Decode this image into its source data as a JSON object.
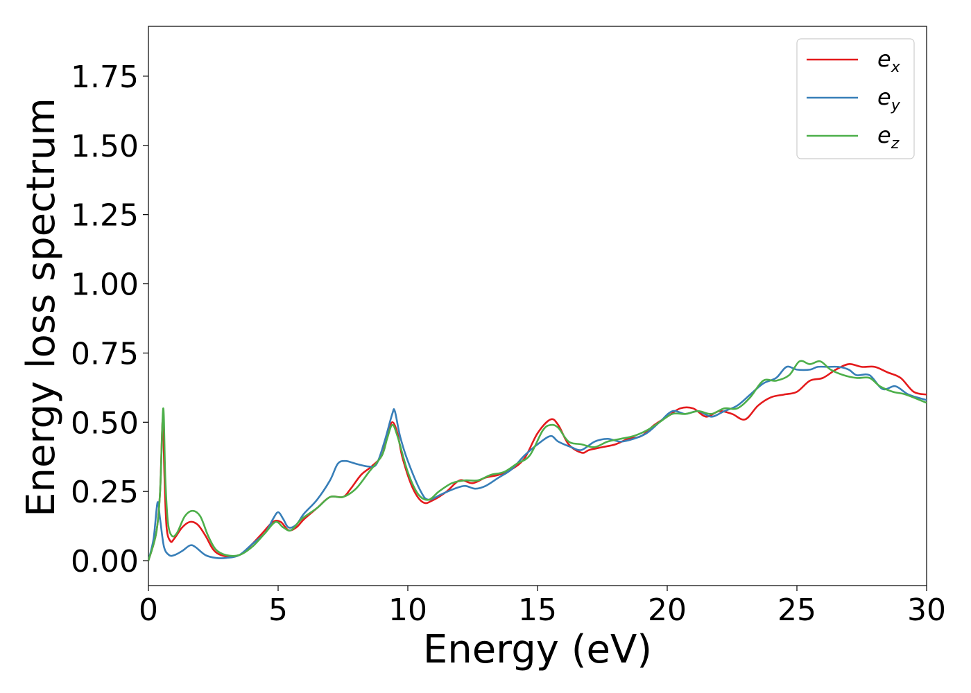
{
  "chart_data": {
    "type": "line",
    "xlabel": "Energy (eV)",
    "ylabel": "Energy loss spectrum",
    "xlim": [
      0,
      30
    ],
    "ylim": [
      -0.09,
      1.93
    ],
    "x_ticks": [
      0,
      5,
      10,
      15,
      20,
      25,
      30
    ],
    "y_ticks": [
      0.0,
      0.25,
      0.5,
      0.75,
      1.0,
      1.25,
      1.5,
      1.75
    ],
    "x_tick_labels": [
      "0",
      "5",
      "10",
      "15",
      "20",
      "25",
      "30"
    ],
    "y_tick_labels": [
      "0.00",
      "0.25",
      "0.50",
      "0.75",
      "1.00",
      "1.25",
      "1.50",
      "1.75"
    ],
    "grid": false,
    "legend_position": "top-right",
    "series": [
      {
        "name": "e",
        "subscript": "x",
        "color": "#e41a1c",
        "points": [
          [
            0,
            0.0
          ],
          [
            0.3,
            0.1
          ],
          [
            0.45,
            0.25
          ],
          [
            0.55,
            0.51
          ],
          [
            0.62,
            0.3
          ],
          [
            0.7,
            0.12
          ],
          [
            0.85,
            0.07
          ],
          [
            1.0,
            0.08
          ],
          [
            1.3,
            0.12
          ],
          [
            1.6,
            0.14
          ],
          [
            1.9,
            0.13
          ],
          [
            2.2,
            0.09
          ],
          [
            2.5,
            0.04
          ],
          [
            2.8,
            0.02
          ],
          [
            3.2,
            0.015
          ],
          [
            3.6,
            0.025
          ],
          [
            4.0,
            0.06
          ],
          [
            4.4,
            0.1
          ],
          [
            4.8,
            0.14
          ],
          [
            5.1,
            0.14
          ],
          [
            5.4,
            0.11
          ],
          [
            5.7,
            0.12
          ],
          [
            6.0,
            0.15
          ],
          [
            6.5,
            0.19
          ],
          [
            7.0,
            0.23
          ],
          [
            7.5,
            0.23
          ],
          [
            7.8,
            0.26
          ],
          [
            8.2,
            0.31
          ],
          [
            8.6,
            0.34
          ],
          [
            9.0,
            0.38
          ],
          [
            9.2,
            0.45
          ],
          [
            9.4,
            0.5
          ],
          [
            9.6,
            0.46
          ],
          [
            9.8,
            0.37
          ],
          [
            10.2,
            0.26
          ],
          [
            10.6,
            0.21
          ],
          [
            11.0,
            0.22
          ],
          [
            11.5,
            0.25
          ],
          [
            12.0,
            0.29
          ],
          [
            12.5,
            0.28
          ],
          [
            13.0,
            0.3
          ],
          [
            13.5,
            0.31
          ],
          [
            14.0,
            0.33
          ],
          [
            14.5,
            0.37
          ],
          [
            15.0,
            0.46
          ],
          [
            15.5,
            0.51
          ],
          [
            15.8,
            0.49
          ],
          [
            16.2,
            0.42
          ],
          [
            16.7,
            0.39
          ],
          [
            17.0,
            0.4
          ],
          [
            17.5,
            0.41
          ],
          [
            18.0,
            0.42
          ],
          [
            18.5,
            0.44
          ],
          [
            19.0,
            0.45
          ],
          [
            19.5,
            0.49
          ],
          [
            20.0,
            0.52
          ],
          [
            20.5,
            0.55
          ],
          [
            21.0,
            0.55
          ],
          [
            21.5,
            0.52
          ],
          [
            22.0,
            0.54
          ],
          [
            22.5,
            0.53
          ],
          [
            23.0,
            0.51
          ],
          [
            23.5,
            0.56
          ],
          [
            24.0,
            0.59
          ],
          [
            24.5,
            0.6
          ],
          [
            25.0,
            0.61
          ],
          [
            25.5,
            0.65
          ],
          [
            26.0,
            0.66
          ],
          [
            26.5,
            0.69
          ],
          [
            27.0,
            0.71
          ],
          [
            27.5,
            0.7
          ],
          [
            28.0,
            0.7
          ],
          [
            28.5,
            0.68
          ],
          [
            29.0,
            0.66
          ],
          [
            29.5,
            0.61
          ],
          [
            30.0,
            0.6
          ]
        ]
      },
      {
        "name": "e",
        "subscript": "y",
        "color": "#377eb8",
        "points": [
          [
            0,
            0.0
          ],
          [
            0.2,
            0.08
          ],
          [
            0.35,
            0.21
          ],
          [
            0.45,
            0.15
          ],
          [
            0.6,
            0.05
          ],
          [
            0.8,
            0.02
          ],
          [
            1.0,
            0.02
          ],
          [
            1.3,
            0.035
          ],
          [
            1.6,
            0.055
          ],
          [
            1.8,
            0.05
          ],
          [
            2.2,
            0.02
          ],
          [
            2.6,
            0.01
          ],
          [
            3.0,
            0.01
          ],
          [
            3.5,
            0.02
          ],
          [
            4.0,
            0.06
          ],
          [
            4.5,
            0.1
          ],
          [
            4.8,
            0.15
          ],
          [
            5.0,
            0.175
          ],
          [
            5.2,
            0.15
          ],
          [
            5.4,
            0.12
          ],
          [
            5.7,
            0.13
          ],
          [
            6.0,
            0.17
          ],
          [
            6.5,
            0.22
          ],
          [
            7.0,
            0.29
          ],
          [
            7.3,
            0.35
          ],
          [
            7.6,
            0.36
          ],
          [
            8.0,
            0.35
          ],
          [
            8.5,
            0.34
          ],
          [
            8.8,
            0.35
          ],
          [
            9.1,
            0.43
          ],
          [
            9.4,
            0.53
          ],
          [
            9.5,
            0.54
          ],
          [
            9.7,
            0.45
          ],
          [
            10.0,
            0.36
          ],
          [
            10.5,
            0.25
          ],
          [
            10.8,
            0.22
          ],
          [
            11.3,
            0.24
          ],
          [
            11.8,
            0.26
          ],
          [
            12.2,
            0.27
          ],
          [
            12.6,
            0.26
          ],
          [
            13.0,
            0.27
          ],
          [
            13.5,
            0.3
          ],
          [
            14.0,
            0.33
          ],
          [
            14.5,
            0.38
          ],
          [
            15.0,
            0.42
          ],
          [
            15.5,
            0.45
          ],
          [
            15.8,
            0.43
          ],
          [
            16.3,
            0.41
          ],
          [
            16.7,
            0.4
          ],
          [
            17.2,
            0.43
          ],
          [
            17.7,
            0.44
          ],
          [
            18.2,
            0.43
          ],
          [
            18.7,
            0.44
          ],
          [
            19.2,
            0.46
          ],
          [
            19.7,
            0.5
          ],
          [
            20.2,
            0.54
          ],
          [
            20.7,
            0.53
          ],
          [
            21.2,
            0.54
          ],
          [
            21.7,
            0.52
          ],
          [
            22.2,
            0.54
          ],
          [
            22.7,
            0.56
          ],
          [
            23.2,
            0.6
          ],
          [
            23.7,
            0.64
          ],
          [
            24.2,
            0.66
          ],
          [
            24.6,
            0.7
          ],
          [
            25.0,
            0.69
          ],
          [
            25.5,
            0.69
          ],
          [
            25.8,
            0.7
          ],
          [
            26.2,
            0.7
          ],
          [
            26.6,
            0.7
          ],
          [
            27.0,
            0.69
          ],
          [
            27.3,
            0.67
          ],
          [
            27.8,
            0.67
          ],
          [
            28.3,
            0.62
          ],
          [
            28.8,
            0.63
          ],
          [
            29.3,
            0.6
          ],
          [
            30.0,
            0.58
          ]
        ]
      },
      {
        "name": "e",
        "subscript": "z",
        "color": "#4daf4a",
        "points": [
          [
            0,
            0.0
          ],
          [
            0.3,
            0.1
          ],
          [
            0.45,
            0.25
          ],
          [
            0.57,
            0.55
          ],
          [
            0.65,
            0.3
          ],
          [
            0.75,
            0.14
          ],
          [
            0.9,
            0.09
          ],
          [
            1.1,
            0.1
          ],
          [
            1.4,
            0.16
          ],
          [
            1.7,
            0.18
          ],
          [
            2.0,
            0.16
          ],
          [
            2.3,
            0.09
          ],
          [
            2.6,
            0.04
          ],
          [
            3.0,
            0.02
          ],
          [
            3.5,
            0.02
          ],
          [
            4.0,
            0.05
          ],
          [
            4.5,
            0.1
          ],
          [
            4.9,
            0.14
          ],
          [
            5.2,
            0.12
          ],
          [
            5.5,
            0.11
          ],
          [
            5.9,
            0.15
          ],
          [
            6.5,
            0.19
          ],
          [
            7.0,
            0.23
          ],
          [
            7.5,
            0.23
          ],
          [
            8.0,
            0.26
          ],
          [
            8.5,
            0.32
          ],
          [
            9.0,
            0.38
          ],
          [
            9.2,
            0.44
          ],
          [
            9.4,
            0.49
          ],
          [
            9.6,
            0.45
          ],
          [
            10.0,
            0.32
          ],
          [
            10.4,
            0.24
          ],
          [
            10.8,
            0.22
          ],
          [
            11.2,
            0.25
          ],
          [
            11.7,
            0.28
          ],
          [
            12.2,
            0.29
          ],
          [
            12.7,
            0.29
          ],
          [
            13.2,
            0.31
          ],
          [
            13.7,
            0.32
          ],
          [
            14.2,
            0.35
          ],
          [
            14.7,
            0.38
          ],
          [
            15.2,
            0.47
          ],
          [
            15.5,
            0.49
          ],
          [
            15.8,
            0.48
          ],
          [
            16.2,
            0.43
          ],
          [
            16.7,
            0.42
          ],
          [
            17.2,
            0.41
          ],
          [
            17.7,
            0.43
          ],
          [
            18.2,
            0.44
          ],
          [
            18.7,
            0.45
          ],
          [
            19.2,
            0.47
          ],
          [
            19.7,
            0.5
          ],
          [
            20.2,
            0.53
          ],
          [
            20.7,
            0.53
          ],
          [
            21.2,
            0.54
          ],
          [
            21.7,
            0.53
          ],
          [
            22.2,
            0.55
          ],
          [
            22.7,
            0.55
          ],
          [
            23.2,
            0.59
          ],
          [
            23.7,
            0.65
          ],
          [
            24.2,
            0.65
          ],
          [
            24.7,
            0.67
          ],
          [
            25.1,
            0.72
          ],
          [
            25.5,
            0.71
          ],
          [
            25.9,
            0.72
          ],
          [
            26.3,
            0.69
          ],
          [
            26.8,
            0.67
          ],
          [
            27.3,
            0.66
          ],
          [
            27.8,
            0.66
          ],
          [
            28.2,
            0.63
          ],
          [
            28.7,
            0.61
          ],
          [
            29.2,
            0.6
          ],
          [
            30.0,
            0.57
          ]
        ]
      }
    ]
  }
}
